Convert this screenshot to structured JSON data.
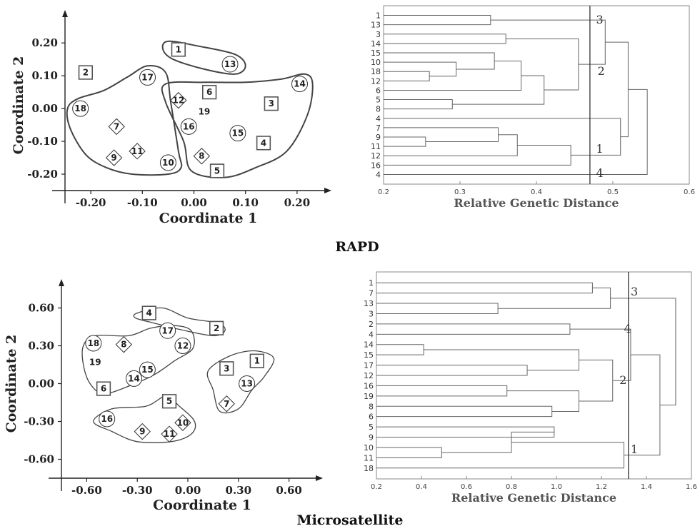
{
  "captions": {
    "rapd": "RAPD",
    "micro": "Microsatellite"
  },
  "chart_data": [
    {
      "type": "scatter",
      "panel": "rapd-pcoa",
      "xlabel": "Coordinate 1",
      "ylabel": "Coordinate 2",
      "xticks": [
        "-0.20",
        "-0.10",
        "0.00",
        "0.10",
        "0.20"
      ],
      "yticks": [
        "0.20",
        "0.10",
        "0.00",
        "-0.10",
        "-0.20"
      ],
      "xlim": [
        -0.25,
        0.25
      ],
      "ylim": [
        -0.25,
        0.27
      ],
      "points": [
        {
          "label": "1",
          "shape": "square",
          "x": -0.03,
          "y": 0.18
        },
        {
          "label": "13",
          "shape": "circle",
          "x": 0.07,
          "y": 0.135
        },
        {
          "label": "2",
          "shape": "square",
          "x": -0.21,
          "y": 0.11
        },
        {
          "label": "17",
          "shape": "circle",
          "x": -0.09,
          "y": 0.095
        },
        {
          "label": "18",
          "shape": "circle",
          "x": -0.22,
          "y": 0.0
        },
        {
          "label": "7",
          "shape": "diamond",
          "x": -0.15,
          "y": -0.055
        },
        {
          "label": "9",
          "shape": "diamond",
          "x": -0.155,
          "y": -0.15
        },
        {
          "label": "11",
          "shape": "diamond",
          "x": -0.11,
          "y": -0.13
        },
        {
          "label": "10",
          "shape": "circle",
          "x": -0.05,
          "y": -0.165
        },
        {
          "label": "12",
          "shape": "diamond",
          "x": -0.03,
          "y": 0.025
        },
        {
          "label": "6",
          "shape": "square",
          "x": 0.03,
          "y": 0.05
        },
        {
          "label": "19",
          "shape": "none",
          "x": 0.02,
          "y": -0.01
        },
        {
          "label": "16",
          "shape": "circle",
          "x": -0.01,
          "y": -0.055
        },
        {
          "label": "15",
          "shape": "circle",
          "x": 0.085,
          "y": -0.075
        },
        {
          "label": "3",
          "shape": "square",
          "x": 0.15,
          "y": 0.015
        },
        {
          "label": "14",
          "shape": "circle",
          "x": 0.205,
          "y": 0.075
        },
        {
          "label": "4",
          "shape": "square",
          "x": 0.135,
          "y": -0.105
        },
        {
          "label": "8",
          "shape": "diamond",
          "x": 0.015,
          "y": -0.145
        },
        {
          "label": "5",
          "shape": "square",
          "x": 0.045,
          "y": -0.19
        }
      ]
    },
    {
      "type": "dendrogram",
      "panel": "rapd-dendrogram",
      "xlabel": "Relative Genetic Distance",
      "xticks": [
        "0.2",
        "0.3",
        "0.4",
        "0.5",
        "0.6"
      ],
      "xlim": [
        0.2,
        0.6
      ],
      "cutoff": 0.47,
      "leaves": [
        "1",
        "13",
        "3",
        "14",
        "15",
        "10",
        "18",
        "12",
        "6",
        "5",
        "8",
        "4",
        "7",
        "9",
        "11",
        "12",
        "16",
        "4"
      ],
      "merges": [
        {
          "a": "L0",
          "b": "L1",
          "h": 0.34
        },
        {
          "a": "L2",
          "b": "L3",
          "h": 0.36
        },
        {
          "a": "L6",
          "b": "L7",
          "h": 0.26
        },
        {
          "a": "L5",
          "b": "N2",
          "h": 0.295
        },
        {
          "a": "L4",
          "b": "N3",
          "h": 0.345
        },
        {
          "a": "N4",
          "b": "L8",
          "h": 0.38
        },
        {
          "a": "L9",
          "b": "L10",
          "h": 0.29
        },
        {
          "a": "N5",
          "b": "N6",
          "h": 0.41
        },
        {
          "a": "N1",
          "b": "N7",
          "h": 0.455
        },
        {
          "a": "L13",
          "b": "L14",
          "h": 0.255
        },
        {
          "a": "L12",
          "b": "N9",
          "h": 0.35
        },
        {
          "a": "N10",
          "b": "L15",
          "h": 0.375
        },
        {
          "a": "N11",
          "b": "L16",
          "h": 0.445
        },
        {
          "a": "N0",
          "b": "N8",
          "h": 0.49
        },
        {
          "a": "L11",
          "b": "N12",
          "h": 0.51
        },
        {
          "a": "N13",
          "b": "N14",
          "h": 0.52
        },
        {
          "a": "N15",
          "b": "L17",
          "h": 0.545
        }
      ],
      "cluster_labels": [
        {
          "label": "3",
          "x": 0.478,
          "leaf_pos": 0.5
        },
        {
          "label": "2",
          "x": 0.48,
          "leaf_pos": 6.0
        },
        {
          "label": "1",
          "x": 0.478,
          "leaf_pos": 14.3
        },
        {
          "label": "4",
          "x": 0.478,
          "leaf_pos": 16.9
        }
      ]
    },
    {
      "type": "scatter",
      "panel": "microsatellite-pcoa",
      "xlabel": "Coordinate 1",
      "ylabel": "Coordinate 2",
      "xticks": [
        "-0.60",
        "-0.30",
        "0.00",
        "0.30",
        "0.60"
      ],
      "yticks": [
        "0.60",
        "0.30",
        "0.00",
        "-0.30",
        "-0.60"
      ],
      "xlim": [
        -0.75,
        0.75
      ],
      "ylim": [
        -0.75,
        0.75
      ],
      "points": [
        {
          "label": "4",
          "shape": "square",
          "x": -0.23,
          "y": 0.56
        },
        {
          "label": "2",
          "shape": "square",
          "x": 0.17,
          "y": 0.44
        },
        {
          "label": "17",
          "shape": "circle",
          "x": -0.12,
          "y": 0.42
        },
        {
          "label": "18",
          "shape": "circle",
          "x": -0.56,
          "y": 0.32
        },
        {
          "label": "8",
          "shape": "diamond",
          "x": -0.38,
          "y": 0.31
        },
        {
          "label": "12",
          "shape": "circle",
          "x": -0.03,
          "y": 0.3
        },
        {
          "label": "19",
          "shape": "none",
          "x": -0.55,
          "y": 0.17
        },
        {
          "label": "15",
          "shape": "circle",
          "x": -0.24,
          "y": 0.11
        },
        {
          "label": "14",
          "shape": "circle",
          "x": -0.32,
          "y": 0.04
        },
        {
          "label": "6",
          "shape": "square",
          "x": -0.5,
          "y": -0.04
        },
        {
          "label": "3",
          "shape": "square",
          "x": 0.23,
          "y": 0.12
        },
        {
          "label": "1",
          "shape": "square",
          "x": 0.41,
          "y": 0.18
        },
        {
          "label": "13",
          "shape": "circle",
          "x": 0.35,
          "y": 0.0
        },
        {
          "label": "7",
          "shape": "diamond",
          "x": 0.23,
          "y": -0.16
        },
        {
          "label": "5",
          "shape": "square",
          "x": -0.11,
          "y": -0.14
        },
        {
          "label": "16",
          "shape": "circle",
          "x": -0.48,
          "y": -0.28
        },
        {
          "label": "9",
          "shape": "diamond",
          "x": -0.27,
          "y": -0.38
        },
        {
          "label": "11",
          "shape": "diamond",
          "x": -0.11,
          "y": -0.4
        },
        {
          "label": "10",
          "shape": "diamond",
          "x": -0.03,
          "y": -0.31
        }
      ]
    },
    {
      "type": "dendrogram",
      "panel": "microsatellite-dendrogram",
      "xlabel": "Relative Genetic Distance",
      "xticks": [
        "0.2",
        "0.4",
        "0.6",
        "0.8",
        "1.0",
        "1.2",
        "1.4",
        "1.6"
      ],
      "xlim": [
        0.2,
        1.6
      ],
      "cutoff": 1.32,
      "leaves": [
        "1",
        "7",
        "13",
        "3",
        "2",
        "4",
        "14",
        "15",
        "17",
        "12",
        "16",
        "19",
        "8",
        "6",
        "5",
        "9",
        "10",
        "11",
        "18"
      ],
      "merges": [
        {
          "a": "L0",
          "b": "L1",
          "h": 1.16
        },
        {
          "a": "L2",
          "b": "L3",
          "h": 0.74
        },
        {
          "a": "N0",
          "b": "N1",
          "h": 1.24
        },
        {
          "a": "L4",
          "b": "L5",
          "h": 1.06
        },
        {
          "a": "L6",
          "b": "L7",
          "h": 0.41
        },
        {
          "a": "L8",
          "b": "L9",
          "h": 0.87
        },
        {
          "a": "N4",
          "b": "N5",
          "h": 1.1
        },
        {
          "a": "L10",
          "b": "L11",
          "h": 0.78
        },
        {
          "a": "L12",
          "b": "L13",
          "h": 0.98
        },
        {
          "a": "N7",
          "b": "N8",
          "h": 1.1
        },
        {
          "a": "N6",
          "b": "N9",
          "h": 1.25
        },
        {
          "a": "N3",
          "b": "N10",
          "h": 1.33
        },
        {
          "a": "L14",
          "b": "L15",
          "h": 0.99
        },
        {
          "a": "L16",
          "b": "L17",
          "h": 0.49
        },
        {
          "a": "N13",
          "b": "N12",
          "h": 0.8
        },
        {
          "a": "N14",
          "b": "L18",
          "h": 1.3
        },
        {
          "a": "N11",
          "b": "N15",
          "h": 1.46
        },
        {
          "a": "N2",
          "b": "N16",
          "h": 1.53
        }
      ],
      "cluster_labels": [
        {
          "label": "3",
          "x": 1.33,
          "leaf_pos": 0.9
        },
        {
          "label": "4",
          "x": 1.3,
          "leaf_pos": 4.5
        },
        {
          "label": "2",
          "x": 1.28,
          "leaf_pos": 9.5
        },
        {
          "label": "1",
          "x": 1.33,
          "leaf_pos": 16.2
        }
      ]
    }
  ]
}
